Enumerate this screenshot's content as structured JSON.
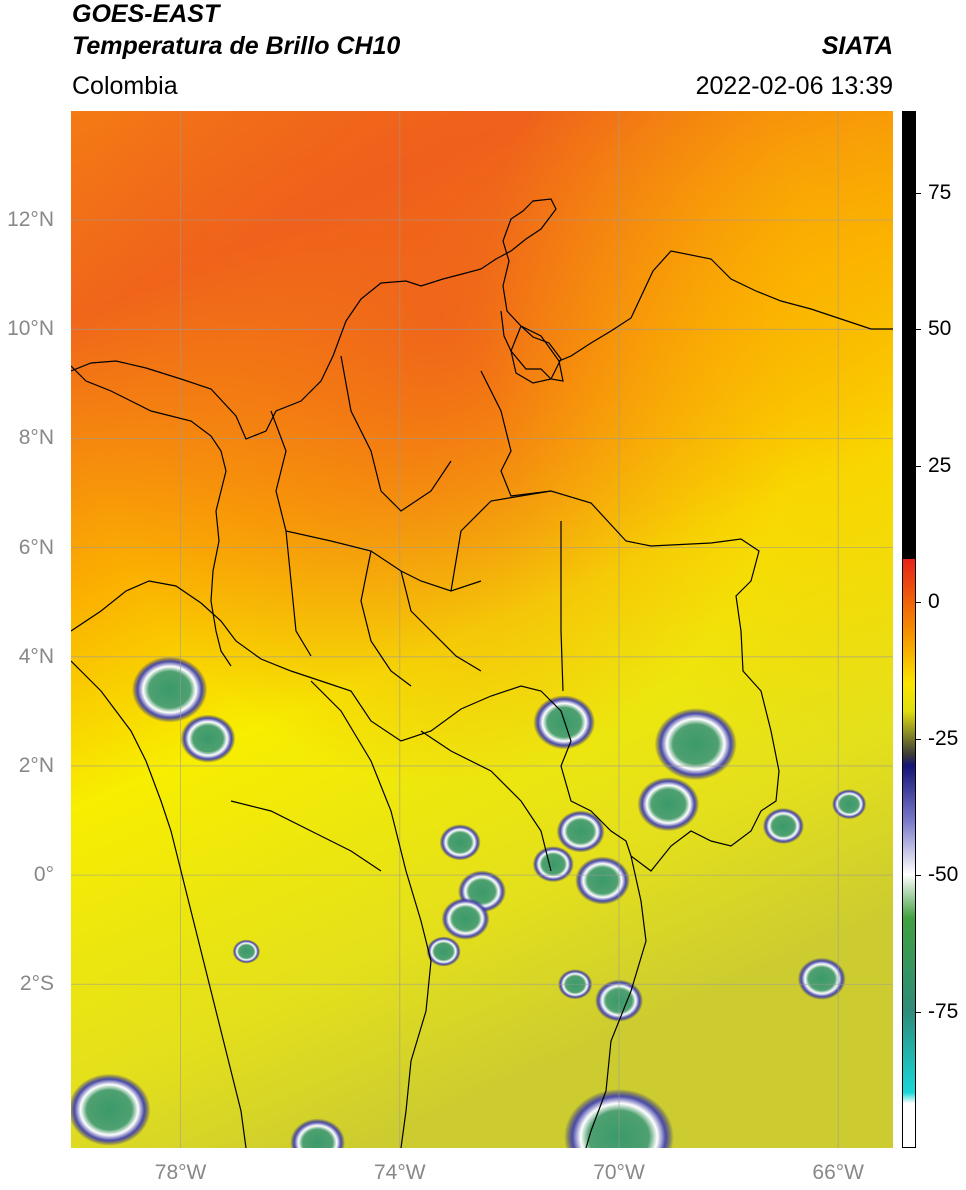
{
  "header": {
    "satellite": "GOES-EAST",
    "product": "Temperatura de Brillo CH10",
    "brand": "SIATA",
    "region": "Colombia",
    "datetime": "2022-02-06 13:39"
  },
  "map": {
    "lon_range": [
      -80,
      -65
    ],
    "lat_range": [
      -5,
      14
    ],
    "lat_ticks": [
      {
        "value": 12,
        "label": "12°N"
      },
      {
        "value": 10,
        "label": "10°N"
      },
      {
        "value": 8,
        "label": "8°N"
      },
      {
        "value": 6,
        "label": "6°N"
      },
      {
        "value": 4,
        "label": "4°N"
      },
      {
        "value": 2,
        "label": "2°N"
      },
      {
        "value": 0,
        "label": "0°"
      },
      {
        "value": -2,
        "label": "2°S"
      }
    ],
    "lon_ticks": [
      {
        "value": -78,
        "label": "78°W"
      },
      {
        "value": -74,
        "label": "74°W"
      },
      {
        "value": -70,
        "label": "70°W"
      },
      {
        "value": -66,
        "label": "66°W"
      }
    ],
    "grid": true,
    "colors": {
      "warm": "#f26a10",
      "mid": "#fbc400",
      "cool": "#e6e21a",
      "cold_cloud": "#1c1c8a",
      "coldest": "#3f9a6a"
    },
    "convective_cells": [
      {
        "lon": -78.2,
        "lat": 3.4,
        "r": 0.55
      },
      {
        "lon": -77.5,
        "lat": 2.5,
        "r": 0.4
      },
      {
        "lon": -71.0,
        "lat": 2.8,
        "r": 0.45
      },
      {
        "lon": -68.6,
        "lat": 2.4,
        "r": 0.6
      },
      {
        "lon": -69.1,
        "lat": 1.3,
        "r": 0.45
      },
      {
        "lon": -70.7,
        "lat": 0.8,
        "r": 0.35
      },
      {
        "lon": -70.3,
        "lat": -0.1,
        "r": 0.4
      },
      {
        "lon": -71.2,
        "lat": 0.2,
        "r": 0.3
      },
      {
        "lon": -72.9,
        "lat": 0.6,
        "r": 0.3
      },
      {
        "lon": -72.5,
        "lat": -0.3,
        "r": 0.35
      },
      {
        "lon": -72.8,
        "lat": -0.8,
        "r": 0.35
      },
      {
        "lon": -73.2,
        "lat": -1.4,
        "r": 0.25
      },
      {
        "lon": -70.0,
        "lat": -2.3,
        "r": 0.35
      },
      {
        "lon": -70.8,
        "lat": -2.0,
        "r": 0.25
      },
      {
        "lon": -66.3,
        "lat": -1.9,
        "r": 0.35
      },
      {
        "lon": -67.0,
        "lat": 0.9,
        "r": 0.3
      },
      {
        "lon": -65.8,
        "lat": 1.3,
        "r": 0.25
      },
      {
        "lon": -70.0,
        "lat": -4.8,
        "r": 0.8
      },
      {
        "lon": -79.3,
        "lat": -4.3,
        "r": 0.6
      },
      {
        "lon": -75.5,
        "lat": -4.9,
        "r": 0.4
      },
      {
        "lon": -76.8,
        "lat": -1.4,
        "r": 0.2
      }
    ]
  },
  "colorbar": {
    "range": [
      -100,
      90
    ],
    "ticks": [
      {
        "value": 75,
        "label": "75"
      },
      {
        "value": 50,
        "label": "50"
      },
      {
        "value": 25,
        "label": "25"
      },
      {
        "value": 0,
        "label": "0"
      },
      {
        "value": -25,
        "label": "-25"
      },
      {
        "value": -50,
        "label": "-50"
      },
      {
        "value": -75,
        "label": "-75"
      }
    ]
  }
}
